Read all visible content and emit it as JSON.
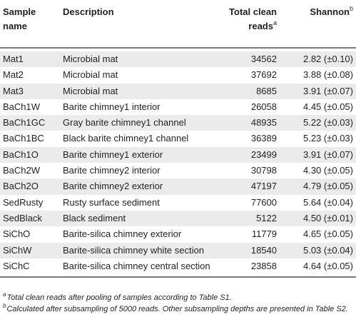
{
  "headers": {
    "sample": "Sample name",
    "description": "Description",
    "reads": "Total clean reads",
    "reads_sup": "a",
    "shannon": "Shannon",
    "shannon_sup": "b"
  },
  "rows": [
    {
      "sample": "Mat1",
      "description": "Microbial mat",
      "reads": "34562",
      "shannon": "2.82 (±0.10)"
    },
    {
      "sample": "Mat2",
      "description": "Microbial mat",
      "reads": "37692",
      "shannon": "3.88 (±0.08)"
    },
    {
      "sample": "Mat3",
      "description": "Microbial mat",
      "reads": "8685",
      "shannon": "3.91 (±0.07)"
    },
    {
      "sample": "BaCh1W",
      "description": "Barite chimney1 interior",
      "reads": "26058",
      "shannon": "4.45 (±0.05)"
    },
    {
      "sample": "BaCh1GC",
      "description": "Gray barite chimney1 channel",
      "reads": "48935",
      "shannon": "5.22 (±0.03)"
    },
    {
      "sample": "BaCh1BC",
      "description": "Black barite chimney1 channel",
      "reads": "36389",
      "shannon": "5.23 (±0.03)"
    },
    {
      "sample": "BaCh1O",
      "description": "Barite chimney1 exterior",
      "reads": "23499",
      "shannon": "3.91 (±0.07)"
    },
    {
      "sample": "BaCh2W",
      "description": "Barite chimney2 interior",
      "reads": "30798",
      "shannon": "4.30 (±0.05)"
    },
    {
      "sample": "BaCh2O",
      "description": "Barite chimney2 exterior",
      "reads": "47197",
      "shannon": "4.79 (±0.05)"
    },
    {
      "sample": "SedRusty",
      "description": "Rusty surface sediment",
      "reads": "77600",
      "shannon": "5.64 (±0.04)"
    },
    {
      "sample": "SedBlack",
      "description": "Black sediment",
      "reads": "5122",
      "shannon": "4.50 (±0.01)"
    },
    {
      "sample": "SiChO",
      "description": "Barite-silica chimney exterior",
      "reads": "11779",
      "shannon": "4.65 (±0.05)"
    },
    {
      "sample": "SiChW",
      "description": "Barite-silica chimney white section",
      "reads": "18540",
      "shannon": "5.03 (±0.04)"
    },
    {
      "sample": "SiChC",
      "description": "Barite-silica chimney central section",
      "reads": "23858",
      "shannon": "4.64 (±0.05)"
    }
  ],
  "notes": {
    "a_mark": "a",
    "a_text": "Total clean reads after pooling of samples according to Table S1.",
    "b_mark": "b",
    "b_text": "Calculated after subsampling of 5000 reads. Other subsampling depths are presented in Table S2."
  }
}
